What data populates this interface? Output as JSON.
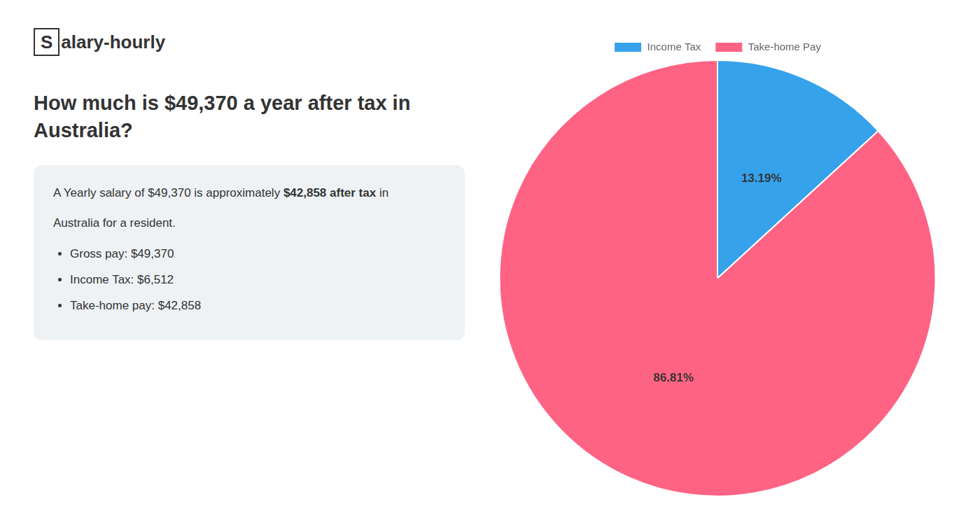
{
  "chart_data": {
    "type": "pie",
    "title": "How much is $49,370 a year after tax in Australia?",
    "annotations": [
      "S",
      "alary-hourly",
      "A Yearly salary of $49,370 is approximately",
      "$42,858 after tax",
      "in",
      "Australia for a resident.",
      "Gross pay: $49,370",
      "Income Tax: $6,512",
      "Take-home pay: $42,858"
    ],
    "categories": [
      "Income Tax",
      "Take-home Pay"
    ],
    "values": [
      13.19,
      86.81
    ],
    "value_labels": [
      "13.19%",
      "86.81%"
    ],
    "data_labels": true,
    "legend": "top"
  }
}
